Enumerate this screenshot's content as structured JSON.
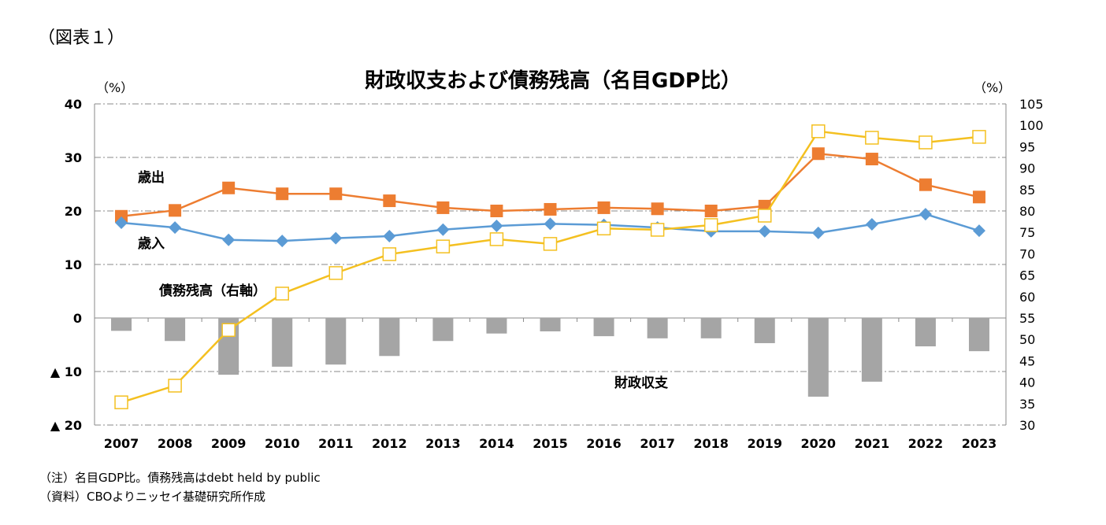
{
  "figure_label": "（図表１）",
  "footnotes": [
    "（注）名目GDP比。債務残高はdebt held by public",
    "（資料）CBOよりニッセイ基礎研究所作成"
  ],
  "chart_data": {
    "type": "bar+line",
    "title": "財政収支および債務残高（名目GDP比）",
    "left_unit": "（%）",
    "right_unit": "（%）",
    "categories": [
      "2007",
      "2008",
      "2009",
      "2010",
      "2011",
      "2012",
      "2013",
      "2014",
      "2015",
      "2016",
      "2017",
      "2018",
      "2019",
      "2020",
      "2021",
      "2022",
      "2023"
    ],
    "left_axis": {
      "range": [
        -20,
        40
      ],
      "ticks": [
        "40",
        "30",
        "20",
        "10",
        "0",
        "▲ 10",
        "▲ 20"
      ],
      "tick_values": [
        40,
        30,
        20,
        10,
        0,
        -10,
        -20
      ]
    },
    "right_axis": {
      "range": [
        30,
        105
      ],
      "ticks": [
        "105",
        "100",
        "95",
        "90",
        "85",
        "80",
        "75",
        "70",
        "65",
        "60",
        "55",
        "50",
        "45",
        "40",
        "35",
        "30"
      ],
      "tick_values": [
        105,
        100,
        95,
        90,
        85,
        80,
        75,
        70,
        65,
        60,
        55,
        50,
        45,
        40,
        35,
        30
      ]
    },
    "grid": true,
    "series": [
      {
        "name": "財政収支",
        "type": "bar",
        "axis": "left",
        "color": "#a5a5a5",
        "values": [
          -2.4,
          -4.3,
          -10.6,
          -9.1,
          -8.7,
          -7.1,
          -4.3,
          -2.9,
          -2.5,
          -3.4,
          -3.8,
          -3.8,
          -4.7,
          -14.7,
          -11.9,
          -5.3,
          -6.2
        ]
      },
      {
        "name": "歳出",
        "type": "line",
        "axis": "left",
        "color": "#ed7d31",
        "marker": "square",
        "values": [
          19.0,
          20.1,
          24.3,
          23.2,
          23.2,
          21.9,
          20.6,
          20.0,
          20.3,
          20.6,
          20.4,
          20.0,
          20.9,
          30.7,
          29.7,
          24.9,
          22.6
        ]
      },
      {
        "name": "歳入",
        "type": "line",
        "axis": "left",
        "color": "#5b9bd5",
        "marker": "diamond",
        "values": [
          17.8,
          16.9,
          14.6,
          14.4,
          14.9,
          15.3,
          16.5,
          17.2,
          17.6,
          17.4,
          16.9,
          16.2,
          16.2,
          15.9,
          17.5,
          19.4,
          16.3
        ]
      },
      {
        "name": "債務残高（右軸）",
        "type": "line",
        "axis": "right",
        "color": "#f4c020",
        "marker": "hollow-square",
        "values": [
          35.3,
          39.2,
          52.2,
          60.7,
          65.5,
          69.9,
          71.7,
          73.4,
          72.3,
          75.9,
          75.6,
          76.7,
          78.9,
          98.6,
          97.1,
          96.0,
          97.3
        ]
      }
    ]
  }
}
